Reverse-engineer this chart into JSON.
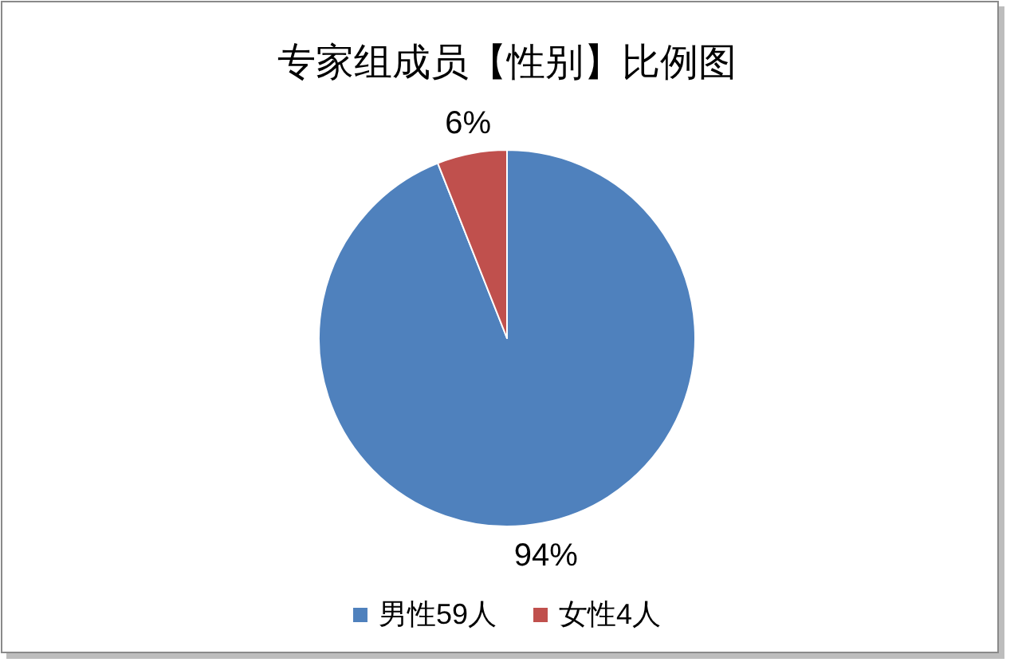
{
  "chart_data": {
    "type": "pie",
    "title": "专家组成员【性别】比例图",
    "categories": [
      "男性59人",
      "女性4人"
    ],
    "values": [
      94,
      6
    ],
    "colors": [
      "#4f81bd",
      "#c0504d"
    ],
    "value_labels": [
      "94%",
      "6%"
    ],
    "legend": "bottom"
  }
}
